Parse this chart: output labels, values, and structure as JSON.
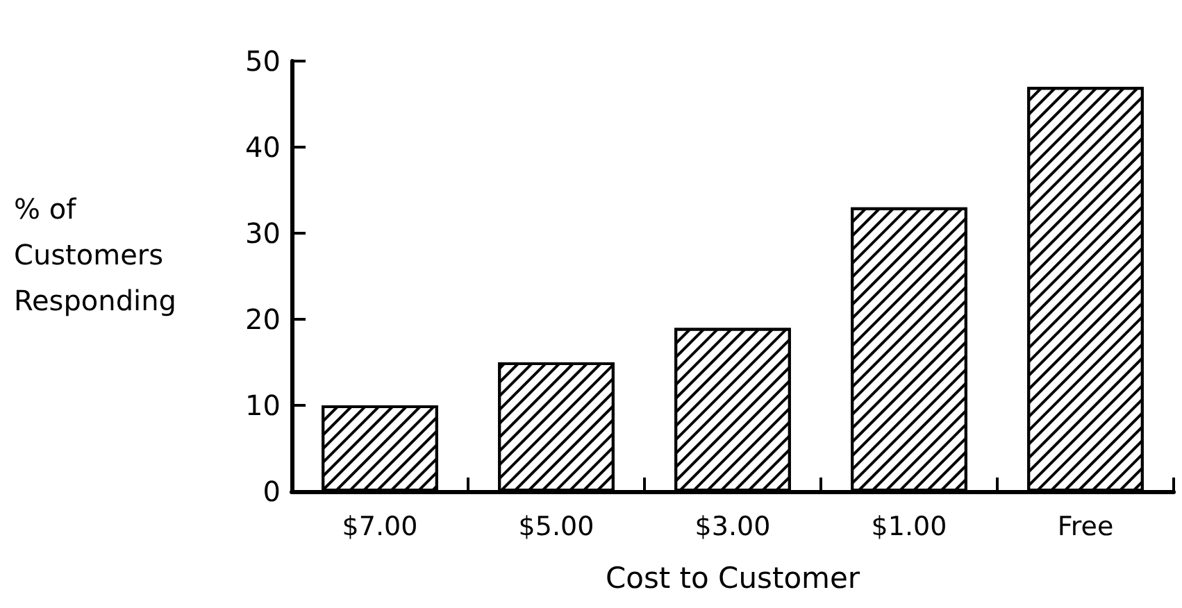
{
  "chart_data": {
    "type": "bar",
    "xlabel": "Cost to Customer",
    "ylabel": "% of\nCustomers\nResponding",
    "categories": [
      "$7.00",
      "$5.00",
      "$3.00",
      "$1.00",
      "Free"
    ],
    "values": [
      10,
      15,
      19,
      33,
      47
    ],
    "color": "#ffffff",
    "ylim": [
      0,
      50
    ],
    "yticks": [
      0,
      10,
      20,
      30,
      40,
      50
    ],
    "grid": false
  }
}
